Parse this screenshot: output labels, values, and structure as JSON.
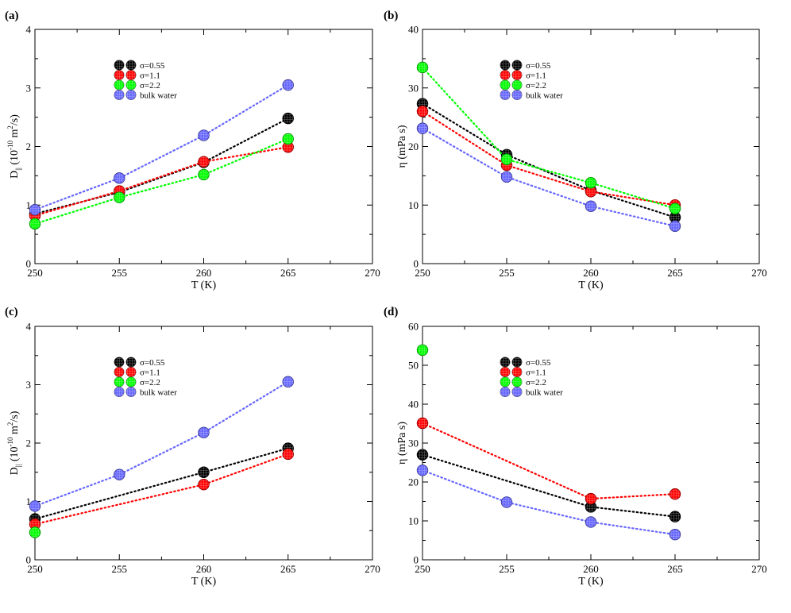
{
  "figure": {
    "colors": {
      "black": "#000000",
      "red": "#ff0000",
      "green": "#00ff00",
      "blue": "#6666ff",
      "axis": "#000000"
    }
  },
  "chart_data": [
    {
      "type": "line",
      "panel_label": "(a)",
      "xlabel": "T (K)",
      "ylabel_prefix": "D",
      "ylabel_sub": "||",
      "ylabel_mid": " (10",
      "ylabel_sup1": "-10",
      "ylabel_mid2": " m",
      "ylabel_sup2": "2",
      "ylabel_suffix": "/s)",
      "xlim": [
        250,
        270
      ],
      "ylim": [
        0,
        4
      ],
      "xticks": [
        250,
        255,
        260,
        265,
        270
      ],
      "yticks": [
        0,
        1,
        2,
        3,
        4
      ],
      "legend_position": "upper-left-center",
      "series": [
        {
          "name": "σ=0.55",
          "color": "black",
          "x": [
            250,
            255,
            260,
            265
          ],
          "y": [
            0.85,
            1.22,
            1.73,
            2.48
          ]
        },
        {
          "name": "σ=1.1",
          "color": "red",
          "x": [
            250,
            255,
            260,
            265
          ],
          "y": [
            0.82,
            1.24,
            1.74,
            1.99
          ]
        },
        {
          "name": "σ=2.2",
          "color": "green",
          "x": [
            250,
            255,
            260,
            265
          ],
          "y": [
            0.68,
            1.13,
            1.52,
            2.13
          ]
        },
        {
          "name": "bulk water",
          "color": "blue",
          "x": [
            250,
            255,
            260,
            265
          ],
          "y": [
            0.92,
            1.46,
            2.19,
            3.05
          ]
        }
      ]
    },
    {
      "type": "line",
      "panel_label": "(b)",
      "xlabel": "T (K)",
      "ylabel_prefix": "η (mPa s)",
      "xlim": [
        250,
        270
      ],
      "ylim": [
        0,
        40
      ],
      "xticks": [
        250,
        255,
        260,
        265,
        270
      ],
      "yticks": [
        0,
        10,
        20,
        30,
        40
      ],
      "legend_position": "upper-center",
      "series": [
        {
          "name": "σ=0.55",
          "color": "black",
          "x": [
            250,
            255,
            260,
            265
          ],
          "y": [
            27.3,
            18.6,
            12.5,
            7.9
          ]
        },
        {
          "name": "σ=1.1",
          "color": "red",
          "x": [
            250,
            255,
            260,
            265
          ],
          "y": [
            26.0,
            16.8,
            12.3,
            10.0
          ]
        },
        {
          "name": "σ=2.2",
          "color": "green",
          "x": [
            250,
            255,
            260,
            265
          ],
          "y": [
            33.5,
            17.8,
            13.8,
            9.4
          ]
        },
        {
          "name": "bulk water",
          "color": "blue",
          "x": [
            250,
            255,
            260,
            265
          ],
          "y": [
            23.1,
            14.8,
            9.8,
            6.4
          ]
        }
      ]
    },
    {
      "type": "line",
      "panel_label": "(c)",
      "xlabel": "T (K)",
      "ylabel_prefix": "D",
      "ylabel_sub": "||",
      "ylabel_mid": " (10",
      "ylabel_sup1": "-10",
      "ylabel_mid2": " m",
      "ylabel_sup2": "2",
      "ylabel_suffix": "/s)",
      "xlim": [
        250,
        270
      ],
      "ylim": [
        0,
        4
      ],
      "xticks": [
        250,
        255,
        260,
        265,
        270
      ],
      "yticks": [
        0,
        1,
        2,
        3,
        4
      ],
      "legend_position": "upper-left-center",
      "series": [
        {
          "name": "σ=0.55",
          "color": "black",
          "x": [
            250,
            260,
            265
          ],
          "y": [
            0.7,
            1.5,
            1.91
          ]
        },
        {
          "name": "σ=1.1",
          "color": "red",
          "x": [
            250,
            260,
            265
          ],
          "y": [
            0.61,
            1.29,
            1.81
          ]
        },
        {
          "name": "σ=2.2",
          "color": "green",
          "x": [
            250
          ],
          "y": [
            0.47
          ]
        },
        {
          "name": "bulk water",
          "color": "blue",
          "x": [
            250,
            255,
            260,
            265
          ],
          "y": [
            0.92,
            1.46,
            2.18,
            3.05
          ]
        }
      ]
    },
    {
      "type": "line",
      "panel_label": "(d)",
      "xlabel": "T (K)",
      "ylabel_prefix": "η (mPa s)",
      "xlim": [
        250,
        270
      ],
      "ylim": [
        0,
        60
      ],
      "xticks": [
        250,
        255,
        260,
        265,
        270
      ],
      "yticks": [
        0,
        10,
        20,
        30,
        40,
        50,
        60
      ],
      "legend_position": "upper-center",
      "series": [
        {
          "name": "σ=0.55",
          "color": "black",
          "x": [
            250,
            260,
            265
          ],
          "y": [
            27.0,
            13.6,
            11.1
          ]
        },
        {
          "name": "σ=1.1",
          "color": "red",
          "x": [
            250,
            260,
            265
          ],
          "y": [
            35.1,
            15.7,
            16.9
          ]
        },
        {
          "name": "σ=2.2",
          "color": "green",
          "x": [
            250
          ],
          "y": [
            53.9
          ]
        },
        {
          "name": "bulk water",
          "color": "blue",
          "x": [
            250,
            255,
            260,
            265
          ],
          "y": [
            23.0,
            14.8,
            9.7,
            6.5
          ]
        }
      ]
    }
  ]
}
